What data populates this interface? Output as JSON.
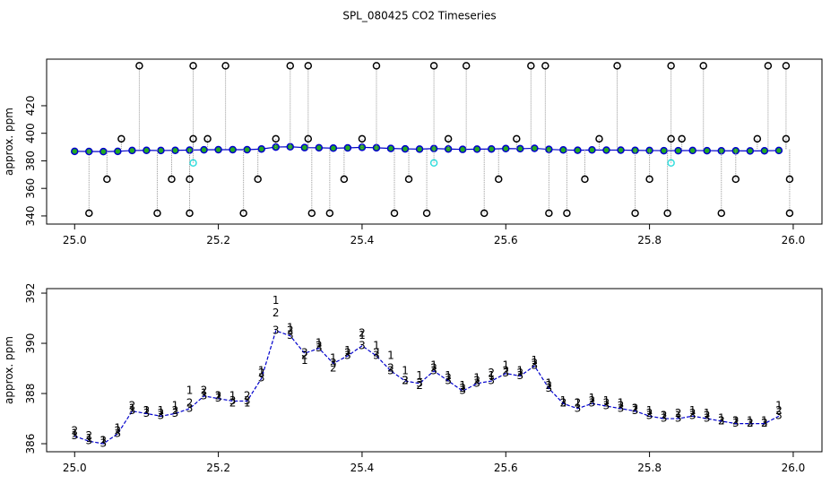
{
  "chart_data": [
    {
      "type": "scatter",
      "title": "SPL_080425  CO2 Timeseries",
      "ylabel": "approx. ppm",
      "xlim": [
        24.961,
        26.04
      ],
      "ylim": [
        334.1,
        453.8
      ],
      "xticks": [
        {
          "value": 25,
          "label": "25.0"
        },
        25.2,
        25.4,
        25.6,
        25.8,
        {
          "value": 26,
          "label": "26.0"
        }
      ],
      "yticks": [
        340,
        360,
        380,
        400,
        420
      ],
      "series": [
        {
          "color": "#0000cc",
          "style": "line",
          "x": [
            25.0,
            25.02,
            25.04,
            25.06,
            25.08,
            25.1,
            25.12,
            25.14,
            25.16,
            25.18,
            25.2,
            25.22,
            25.24,
            25.26,
            25.28,
            25.3,
            25.32,
            25.34,
            25.36,
            25.38,
            25.4,
            25.42,
            25.44,
            25.46,
            25.48,
            25.5,
            25.52,
            25.54,
            25.56,
            25.58,
            25.6,
            25.62,
            25.64,
            25.66,
            25.68,
            25.7,
            25.72,
            25.74,
            25.76,
            25.78,
            25.8,
            25.82,
            25.84,
            25.86,
            25.88,
            25.9,
            25.92,
            25.94,
            25.96,
            25.98
          ],
          "values": [
            386.9,
            386.8,
            386.7,
            386.9,
            387.5,
            387.6,
            387.5,
            387.6,
            387.8,
            388.0,
            388.1,
            388.1,
            388.1,
            388.6,
            390.0,
            390.2,
            389.6,
            389.5,
            389.2,
            389.4,
            389.8,
            389.5,
            389.0,
            388.7,
            388.5,
            388.9,
            388.6,
            388.3,
            388.5,
            388.6,
            388.9,
            388.8,
            389.1,
            388.3,
            387.9,
            387.7,
            387.9,
            387.8,
            387.8,
            387.6,
            387.5,
            387.4,
            387.4,
            387.5,
            387.4,
            387.3,
            387.3,
            387.2,
            387.3,
            387.5
          ]
        },
        {
          "color": "#000000",
          "style": "stem",
          "x": [
            25.09,
            25.165,
            25.21,
            25.3,
            25.325,
            25.42,
            25.5,
            25.545,
            25.635,
            25.655,
            25.755,
            25.83,
            25.875,
            25.965,
            25.99
          ],
          "values": [
            449,
            449,
            449,
            449,
            449,
            449,
            449,
            449,
            449,
            449,
            449,
            449,
            449,
            449,
            449
          ]
        },
        {
          "color": "#000000",
          "style": "stem",
          "x": [
            25.02,
            25.115,
            25.16,
            25.235,
            25.33,
            25.355,
            25.445,
            25.49,
            25.57,
            25.66,
            25.685,
            25.78,
            25.825,
            25.9,
            25.995
          ],
          "values": [
            342,
            342,
            342,
            342,
            342,
            342,
            342,
            342,
            342,
            342,
            342,
            342,
            342,
            342,
            342
          ]
        },
        {
          "color": "#000000",
          "style": "stem",
          "x": [
            25.045,
            25.135,
            25.16,
            25.255,
            25.375,
            25.465,
            25.59,
            25.71,
            25.8,
            25.92,
            25.995
          ],
          "values": [
            366.7,
            366.7,
            366.7,
            366.7,
            366.7,
            366.7,
            366.7,
            366.7,
            366.7,
            366.7,
            366.7
          ]
        },
        {
          "color": "#000000",
          "style": "stem",
          "x": [
            25.065,
            25.165,
            25.185,
            25.28,
            25.325,
            25.4,
            25.52,
            25.615,
            25.73,
            25.83,
            25.845,
            25.95,
            25.99
          ],
          "values": [
            396,
            396,
            396,
            396,
            396,
            396,
            396,
            396,
            396,
            396,
            396,
            396,
            396
          ]
        },
        {
          "color": "#33dddd",
          "style": "stem",
          "x": [
            25.165,
            25.5,
            25.83
          ],
          "values": [
            378.5,
            378.5,
            378.5
          ]
        }
      ]
    },
    {
      "type": "scatter",
      "ylabel": "approx. ppm",
      "xlim": [
        24.961,
        26.04
      ],
      "ylim": [
        385.68,
        392.18
      ],
      "xticks": [
        {
          "value": 25,
          "label": "25.0"
        },
        25.2,
        25.4,
        25.6,
        25.8,
        {
          "value": 26,
          "label": "26.0"
        }
      ],
      "yticks": [
        386,
        388,
        390,
        392
      ],
      "series": [
        {
          "color": "#dd0000",
          "marker": "1",
          "x": [
            25.0,
            25.02,
            25.04,
            25.06,
            25.08,
            25.1,
            25.12,
            25.14,
            25.16,
            25.18,
            25.2,
            25.22,
            25.24,
            25.26,
            25.28,
            25.3,
            25.32,
            25.34,
            25.36,
            25.38,
            25.4,
            25.42,
            25.44,
            25.46,
            25.48,
            25.5,
            25.52,
            25.54,
            25.56,
            25.58,
            25.6,
            25.62,
            25.64,
            25.66,
            25.68,
            25.7,
            25.72,
            25.74,
            25.76,
            25.78,
            25.8,
            25.82,
            25.84,
            25.86,
            25.88,
            25.9,
            25.92,
            25.94,
            25.96,
            25.98
          ],
          "values": [
            386.4,
            386.2,
            386.1,
            386.6,
            387.4,
            387.3,
            387.3,
            387.5,
            388.1,
            388.0,
            387.9,
            387.9,
            387.6,
            388.9,
            391.7,
            390.6,
            389.3,
            390.0,
            389.4,
            389.7,
            390.3,
            389.9,
            389.5,
            388.9,
            388.7,
            389.1,
            388.7,
            388.3,
            388.6,
            388.7,
            389.1,
            388.9,
            389.3,
            388.4,
            387.7,
            387.6,
            387.8,
            387.7,
            387.6,
            387.4,
            387.3,
            387.1,
            387.1,
            387.3,
            387.2,
            387.0,
            386.9,
            386.9,
            386.9,
            387.5
          ]
        },
        {
          "color": "#00bb00",
          "marker": "2",
          "x": [
            25.0,
            25.02,
            25.04,
            25.06,
            25.08,
            25.1,
            25.12,
            25.14,
            25.16,
            25.18,
            25.2,
            25.22,
            25.24,
            25.26,
            25.28,
            25.3,
            25.32,
            25.34,
            25.36,
            25.38,
            25.4,
            25.42,
            25.44,
            25.46,
            25.48,
            25.5,
            25.52,
            25.54,
            25.56,
            25.58,
            25.6,
            25.62,
            25.64,
            25.66,
            25.68,
            25.7,
            25.72,
            25.74,
            25.76,
            25.78,
            25.8,
            25.82,
            25.84,
            25.86,
            25.88,
            25.9,
            25.92,
            25.94,
            25.96,
            25.98
          ],
          "values": [
            386.5,
            386.3,
            386.1,
            386.5,
            387.5,
            387.3,
            387.2,
            387.3,
            387.6,
            388.1,
            387.9,
            387.6,
            387.9,
            388.8,
            391.2,
            390.5,
            389.5,
            389.9,
            389.0,
            389.6,
            390.4,
            389.6,
            389.0,
            388.5,
            388.3,
            389.0,
            388.6,
            388.2,
            388.5,
            388.8,
            388.9,
            388.8,
            389.2,
            388.3,
            387.6,
            387.6,
            387.7,
            387.6,
            387.5,
            387.4,
            387.2,
            387.1,
            387.2,
            387.2,
            387.1,
            386.9,
            386.9,
            386.8,
            386.8,
            387.3
          ]
        },
        {
          "color": "#0000cc",
          "marker": "3",
          "style": "line",
          "x": [
            25.0,
            25.02,
            25.04,
            25.06,
            25.08,
            25.1,
            25.12,
            25.14,
            25.16,
            25.18,
            25.2,
            25.22,
            25.24,
            25.26,
            25.28,
            25.3,
            25.32,
            25.34,
            25.36,
            25.38,
            25.4,
            25.42,
            25.44,
            25.46,
            25.48,
            25.5,
            25.52,
            25.54,
            25.56,
            25.58,
            25.6,
            25.62,
            25.64,
            25.66,
            25.68,
            25.7,
            25.72,
            25.74,
            25.76,
            25.78,
            25.8,
            25.82,
            25.84,
            25.86,
            25.88,
            25.9,
            25.92,
            25.94,
            25.96,
            25.98
          ],
          "values": [
            386.3,
            386.1,
            386.0,
            386.4,
            387.3,
            387.2,
            387.1,
            387.2,
            387.4,
            387.9,
            387.8,
            387.7,
            387.7,
            388.6,
            390.5,
            390.3,
            389.6,
            389.8,
            389.2,
            389.5,
            389.9,
            389.5,
            388.9,
            388.5,
            388.4,
            388.9,
            388.5,
            388.1,
            388.4,
            388.5,
            388.8,
            388.7,
            389.1,
            388.2,
            387.6,
            387.4,
            387.6,
            387.5,
            387.4,
            387.3,
            387.1,
            387.0,
            387.0,
            387.1,
            387.0,
            386.9,
            386.8,
            386.8,
            386.8,
            387.1
          ]
        }
      ]
    }
  ]
}
